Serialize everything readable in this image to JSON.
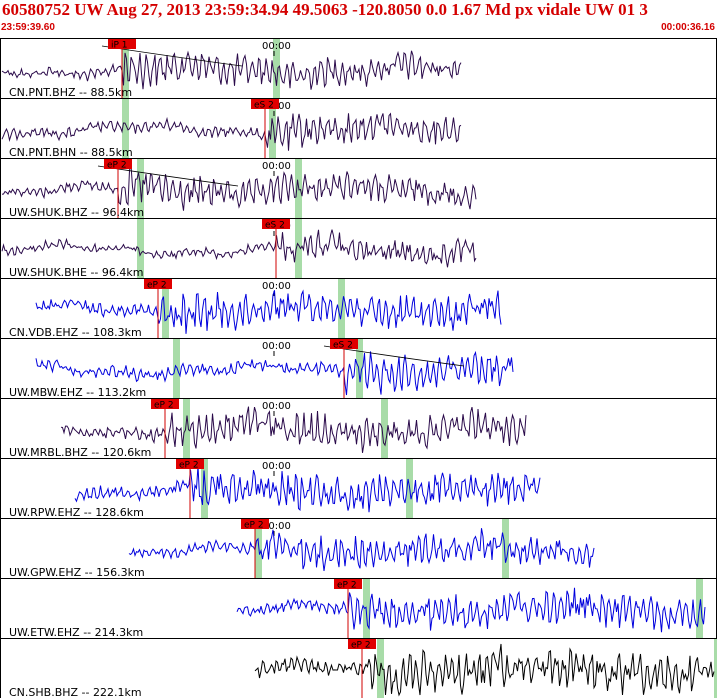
{
  "header": {
    "title": "60580752 UW Aug 27, 2013 23:59:34.94   49.5063 -120.8050  0.0 1.67 Md px vidale UW 01   3",
    "start_time": "23:59:39.60",
    "end_time": "00:00:36.16"
  },
  "colors": {
    "header_text": "#d40000",
    "trace_dark": "#2a0a4a",
    "trace_blue": "#0000dd",
    "trace_black": "#000000",
    "pick_flag": "#e00000",
    "pick_line": "#d00000",
    "green_band": "#a8dca8"
  },
  "panels": [
    {
      "label": "CN.PNT.BHZ -- 88.5km",
      "pick": "iP 1",
      "time_mark": "00:00",
      "color": "dark",
      "amp": 14,
      "start": 0.0,
      "end": 0.645,
      "pick_pos": 0.17,
      "green": [
        0.175,
        0.385
      ],
      "curve": true
    },
    {
      "label": "CN.PNT.BHN -- 88.5km",
      "pick": "eS 2",
      "time_mark": "00:00",
      "color": "dark",
      "amp": 14,
      "start": 0.0,
      "end": 0.645,
      "pick_pos": 0.37,
      "green": [
        0.175,
        0.38
      ],
      "curve": false
    },
    {
      "label": "UW.SHUK.BHZ -- 96.4km",
      "pick": "eP 2",
      "time_mark": "00:00",
      "color": "dark",
      "amp": 14,
      "start": 0.0,
      "end": 0.665,
      "pick_pos": 0.165,
      "green": [
        0.195,
        0.415
      ],
      "curve": true
    },
    {
      "label": "UW.SHUK.BHE -- 96.4km",
      "pick": "eS 2",
      "time_mark": "00:00",
      "color": "dark",
      "amp": 12,
      "start": 0.0,
      "end": 0.665,
      "pick_pos": 0.385,
      "green": [
        0.195,
        0.415
      ],
      "curve": false
    },
    {
      "label": "CN.VDB.EHZ -- 108.3km",
      "pick": "eP 2",
      "time_mark": "00:00",
      "color": "blue",
      "amp": 16,
      "start": 0.05,
      "end": 0.7,
      "pick_pos": 0.22,
      "green": [
        0.23,
        0.475
      ],
      "curve": false
    },
    {
      "label": "UW.MBW.EHZ -- 113.2km",
      "pick": "eS 2",
      "time_mark": "00:00",
      "color": "blue",
      "amp": 16,
      "start": 0.05,
      "end": 0.715,
      "pick_pos": 0.48,
      "green": [
        0.245,
        0.5
      ],
      "curve": true
    },
    {
      "label": "UW.MRBL.BHZ -- 120.6km",
      "pick": "eP 2",
      "time_mark": "00:00",
      "color": "dark",
      "amp": 16,
      "start": 0.085,
      "end": 0.735,
      "pick_pos": 0.23,
      "green": [
        0.26,
        0.535
      ],
      "curve": false
    },
    {
      "label": "UW.RPW.EHZ -- 128.6km",
      "pick": "eP 2",
      "time_mark": "00:00",
      "color": "blue",
      "amp": 16,
      "start": 0.105,
      "end": 0.755,
      "pick_pos": 0.265,
      "green": [
        0.285,
        0.57
      ],
      "curve": false
    },
    {
      "label": "UW.GPW.EHZ -- 156.3km",
      "pick": "eP 2",
      "time_mark": "00:00",
      "color": "blue",
      "amp": 14,
      "start": 0.18,
      "end": 0.83,
      "pick_pos": 0.355,
      "green": [
        0.36,
        0.705
      ],
      "curve": false
    },
    {
      "label": "UW.ETW.EHZ -- 214.3km",
      "pick": "eP 2",
      "time_mark": "",
      "color": "blue",
      "amp": 16,
      "start": 0.33,
      "end": 0.985,
      "pick_pos": 0.485,
      "green": [
        0.51,
        0.975
      ],
      "curve": false
    },
    {
      "label": "CN.SHB.BHZ -- 222.1km",
      "pick": "eP 2",
      "time_mark": "",
      "color": "black",
      "amp": 20,
      "start": 0.355,
      "end": 1.0,
      "pick_pos": 0.505,
      "green": [
        0.53,
        1.0
      ],
      "curve": false
    }
  ]
}
